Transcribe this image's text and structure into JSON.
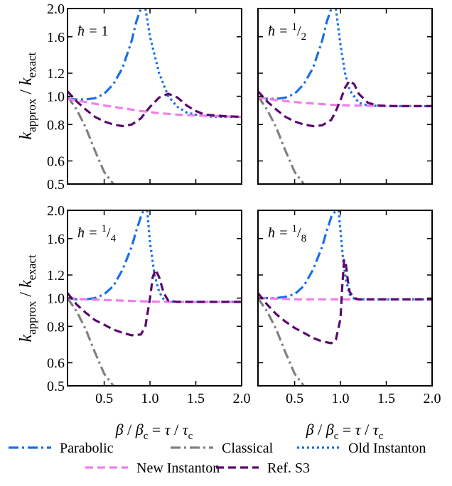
{
  "chart_data": {
    "type": "line",
    "layout": "2x2 grid, shared axes",
    "xlabel": "β / βc = τ / τc",
    "ylabel": "kapprox / kexact",
    "xlim": [
      0.1,
      2.0
    ],
    "ylim": [
      0.5,
      2.0
    ],
    "yscale": "log",
    "xticks": [
      "0.5",
      "1.0",
      "1.5",
      "2.0"
    ],
    "yticks": [
      "0.5",
      "0.6",
      "0.8",
      "1.0",
      "1.2",
      "1.6",
      "2.0"
    ],
    "grid": false,
    "legend_position": "bottom",
    "legend": [
      {
        "name": "Parabolic",
        "color": "#1a6fe8",
        "dash": "dash-dot"
      },
      {
        "name": "Classical",
        "color": "#808080",
        "dash": "dash-dot"
      },
      {
        "name": "Old Instanton",
        "color": "#1a6fe8",
        "dash": "dotted"
      },
      {
        "name": "New Instanton",
        "color": "#f07ee8",
        "dash": "dashed"
      },
      {
        "name": "Ref. S3",
        "color": "#5a0a6e",
        "dash": "dashed"
      }
    ],
    "panels": [
      {
        "label_prefix": "ħ = ",
        "label_num": "1",
        "label_den": "",
        "series": [
          {
            "name": "Parabolic",
            "x": [
              0.1,
              0.2,
              0.3,
              0.4,
              0.5,
              0.6,
              0.7,
              0.8,
              0.85,
              0.9
            ],
            "y": [
              0.98,
              0.975,
              0.975,
              0.985,
              1.02,
              1.1,
              1.25,
              1.55,
              1.8,
              2.0
            ]
          },
          {
            "name": "Classical",
            "x": [
              0.1,
              0.2,
              0.3,
              0.4,
              0.5,
              0.6
            ],
            "y": [
              1.0,
              0.9,
              0.78,
              0.65,
              0.55,
              0.5
            ]
          },
          {
            "name": "Old Instanton",
            "x": [
              0.95,
              1.0,
              1.1,
              1.2,
              1.3,
              1.4,
              1.5,
              1.7,
              2.0
            ],
            "y": [
              2.0,
              1.6,
              1.2,
              1.0,
              0.92,
              0.88,
              0.865,
              0.85,
              0.85
            ]
          },
          {
            "name": "New Instanton",
            "x": [
              0.1,
              0.3,
              0.5,
              0.7,
              0.9,
              1.1,
              1.3,
              1.5,
              1.7,
              2.0
            ],
            "y": [
              0.98,
              0.955,
              0.93,
              0.91,
              0.89,
              0.875,
              0.865,
              0.86,
              0.855,
              0.85
            ]
          },
          {
            "name": "Ref. S3",
            "x": [
              0.1,
              0.2,
              0.3,
              0.4,
              0.5,
              0.6,
              0.7,
              0.8,
              0.9,
              1.0,
              1.1,
              1.2,
              1.3,
              1.4,
              1.5,
              1.6,
              1.8,
              2.0
            ],
            "y": [
              1.04,
              0.96,
              0.9,
              0.85,
              0.82,
              0.8,
              0.79,
              0.8,
              0.84,
              0.92,
              0.99,
              1.02,
              0.99,
              0.93,
              0.89,
              0.865,
              0.855,
              0.85
            ]
          }
        ]
      },
      {
        "label_prefix": "ħ = ",
        "label_num": "1",
        "label_den": "2",
        "series": [
          {
            "name": "Parabolic",
            "x": [
              0.1,
              0.2,
              0.3,
              0.4,
              0.5,
              0.6,
              0.7,
              0.8,
              0.85,
              0.9
            ],
            "y": [
              0.99,
              0.98,
              0.98,
              0.99,
              1.02,
              1.1,
              1.25,
              1.55,
              1.8,
              2.0
            ]
          },
          {
            "name": "Classical",
            "x": [
              0.1,
              0.2,
              0.3,
              0.4,
              0.5,
              0.6
            ],
            "y": [
              1.0,
              0.9,
              0.78,
              0.65,
              0.55,
              0.5
            ]
          },
          {
            "name": "Old Instanton",
            "x": [
              0.95,
              1.0,
              1.05,
              1.1,
              1.2,
              1.3,
              1.5,
              1.7,
              2.0
            ],
            "y": [
              2.0,
              1.5,
              1.2,
              1.05,
              0.95,
              0.93,
              0.925,
              0.925,
              0.925
            ]
          },
          {
            "name": "New Instanton",
            "x": [
              0.1,
              0.3,
              0.5,
              0.7,
              0.9,
              1.1,
              1.3,
              1.5,
              1.7,
              2.0
            ],
            "y": [
              0.99,
              0.97,
              0.955,
              0.945,
              0.935,
              0.93,
              0.928,
              0.926,
              0.925,
              0.925
            ]
          },
          {
            "name": "Ref. S3",
            "x": [
              0.1,
              0.2,
              0.3,
              0.4,
              0.5,
              0.6,
              0.7,
              0.8,
              0.9,
              0.95,
              1.0,
              1.05,
              1.1,
              1.15,
              1.2,
              1.3,
              1.4,
              1.6,
              2.0
            ],
            "y": [
              1.04,
              0.96,
              0.9,
              0.85,
              0.82,
              0.8,
              0.79,
              0.795,
              0.83,
              0.89,
              0.97,
              1.07,
              1.13,
              1.1,
              1.02,
              0.95,
              0.93,
              0.925,
              0.925
            ]
          }
        ]
      },
      {
        "label_prefix": "ħ = ",
        "label_num": "1",
        "label_den": "4",
        "series": [
          {
            "name": "Parabolic",
            "x": [
              0.1,
              0.2,
              0.3,
              0.4,
              0.5,
              0.6,
              0.7,
              0.8,
              0.85,
              0.9,
              0.93
            ],
            "y": [
              1.0,
              0.99,
              0.99,
              1.0,
              1.03,
              1.1,
              1.25,
              1.5,
              1.7,
              1.9,
              2.0
            ]
          },
          {
            "name": "Classical",
            "x": [
              0.1,
              0.2,
              0.3,
              0.4,
              0.5,
              0.6
            ],
            "y": [
              1.0,
              0.9,
              0.78,
              0.65,
              0.55,
              0.5
            ]
          },
          {
            "name": "Old Instanton",
            "x": [
              0.97,
              1.0,
              1.05,
              1.1,
              1.15,
              1.2,
              1.3,
              1.5,
              2.0
            ],
            "y": [
              2.0,
              1.55,
              1.2,
              1.05,
              0.99,
              0.975,
              0.97,
              0.97,
              0.97
            ]
          },
          {
            "name": "New Instanton",
            "x": [
              0.1,
              0.3,
              0.5,
              0.7,
              0.9,
              1.1,
              1.3,
              1.5,
              1.7,
              2.0
            ],
            "y": [
              1.0,
              0.99,
              0.985,
              0.98,
              0.975,
              0.972,
              0.97,
              0.97,
              0.97,
              0.97
            ]
          },
          {
            "name": "Ref. S3",
            "x": [
              0.1,
              0.2,
              0.3,
              0.4,
              0.5,
              0.6,
              0.7,
              0.8,
              0.9,
              0.95,
              1.0,
              1.03,
              1.06,
              1.1,
              1.15,
              1.2,
              1.3,
              1.5,
              2.0
            ],
            "y": [
              1.04,
              0.95,
              0.89,
              0.84,
              0.81,
              0.78,
              0.76,
              0.745,
              0.75,
              0.8,
              1.0,
              1.18,
              1.25,
              1.18,
              1.04,
              0.98,
              0.97,
              0.97,
              0.97
            ]
          }
        ]
      },
      {
        "label_prefix": "ħ = ",
        "label_num": "1",
        "label_den": "8",
        "series": [
          {
            "name": "Parabolic",
            "x": [
              0.1,
              0.2,
              0.3,
              0.4,
              0.5,
              0.6,
              0.7,
              0.8,
              0.85,
              0.9,
              0.95
            ],
            "y": [
              1.0,
              1.0,
              1.0,
              1.01,
              1.03,
              1.1,
              1.25,
              1.5,
              1.7,
              1.9,
              2.0
            ]
          },
          {
            "name": "Classical",
            "x": [
              0.1,
              0.2,
              0.3,
              0.4,
              0.5,
              0.6
            ],
            "y": [
              1.0,
              0.9,
              0.78,
              0.65,
              0.55,
              0.5
            ]
          },
          {
            "name": "Old Instanton",
            "x": [
              0.98,
              1.0,
              1.03,
              1.06,
              1.1,
              1.15,
              1.2,
              1.5,
              2.0
            ],
            "y": [
              2.0,
              1.7,
              1.35,
              1.15,
              1.03,
              0.995,
              0.99,
              0.99,
              0.99
            ]
          },
          {
            "name": "New Instanton",
            "x": [
              0.1,
              0.3,
              0.5,
              0.7,
              0.9,
              1.1,
              1.3,
              1.5,
              2.0
            ],
            "y": [
              1.0,
              0.995,
              0.99,
              0.99,
              0.99,
              0.99,
              0.99,
              0.99,
              0.99
            ]
          },
          {
            "name": "Ref. S3",
            "x": [
              0.1,
              0.2,
              0.3,
              0.4,
              0.5,
              0.6,
              0.7,
              0.8,
              0.9,
              0.95,
              1.0,
              1.02,
              1.04,
              1.06,
              1.08,
              1.1,
              1.15,
              1.2,
              1.3,
              2.0
            ],
            "y": [
              1.04,
              0.95,
              0.88,
              0.83,
              0.79,
              0.76,
              0.73,
              0.71,
              0.7,
              0.72,
              0.85,
              1.1,
              1.35,
              1.3,
              1.15,
              1.05,
              1.0,
              0.99,
              0.99,
              0.99
            ]
          }
        ]
      }
    ]
  }
}
